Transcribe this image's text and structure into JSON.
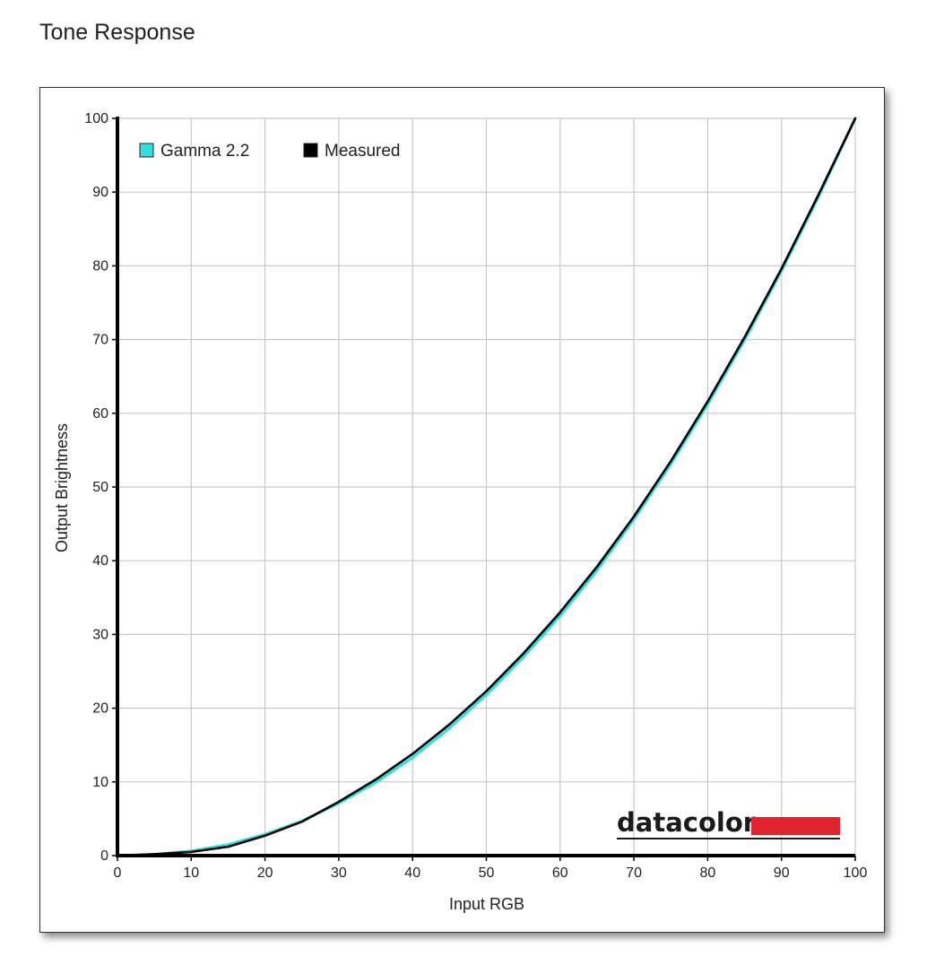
{
  "page": {
    "title": "Tone Response"
  },
  "colors": {
    "gamma": "#33dddd",
    "measured": "#000000",
    "grid": "#c8c8c8",
    "logo_bar": "#e0242e"
  },
  "logo": {
    "text": "datacolor"
  },
  "chart_data": {
    "type": "line",
    "xlabel": "Input RGB",
    "ylabel": "Output Brightness",
    "xlim": [
      0,
      100
    ],
    "ylim": [
      0,
      100
    ],
    "xticks": [
      "0",
      "10",
      "20",
      "30",
      "40",
      "50",
      "60",
      "70",
      "80",
      "90",
      "100"
    ],
    "yticks": [
      "0",
      "10",
      "20",
      "30",
      "40",
      "50",
      "60",
      "70",
      "80",
      "90",
      "100"
    ],
    "grid": true,
    "legend": "top-left",
    "series": [
      {
        "name": "Gamma 2.2",
        "color": "#33dddd",
        "x": [
          0,
          5,
          10,
          15,
          20,
          25,
          30,
          35,
          40,
          45,
          50,
          55,
          60,
          65,
          70,
          75,
          80,
          85,
          90,
          95,
          100
        ],
        "y": [
          0,
          0.14,
          0.63,
          1.5,
          2.9,
          4.7,
          7.1,
          9.9,
          13.3,
          17.3,
          21.8,
          26.9,
          32.5,
          38.7,
          45.6,
          53.1,
          61.2,
          69.9,
          79.3,
          89.3,
          100
        ]
      },
      {
        "name": "Measured",
        "color": "#000000",
        "x": [
          0,
          5,
          10,
          15,
          20,
          25,
          30,
          35,
          40,
          45,
          50,
          55,
          60,
          65,
          70,
          75,
          80,
          85,
          90,
          95,
          100
        ],
        "y": [
          0,
          0.2,
          0.5,
          1.2,
          2.7,
          4.6,
          7.3,
          10.3,
          13.8,
          17.8,
          22.3,
          27.4,
          33.0,
          39.2,
          46.0,
          53.5,
          61.6,
          70.3,
          79.6,
          89.6,
          100
        ]
      }
    ]
  }
}
